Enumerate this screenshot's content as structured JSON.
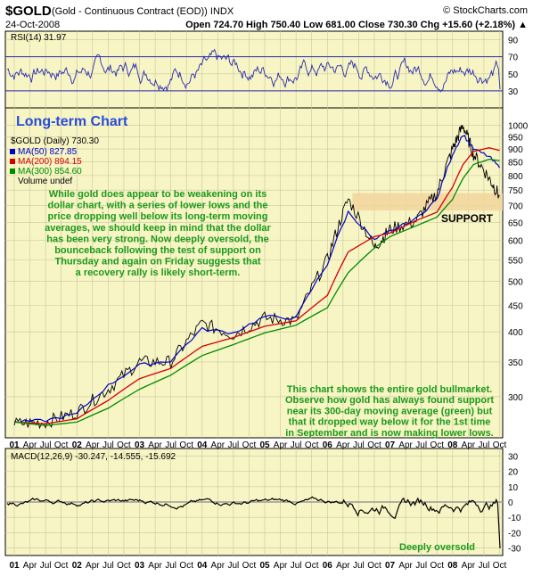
{
  "header": {
    "symbol": "$GOLD",
    "name": "(Gold - Continuous Contract (EOD)) INDX",
    "source": "© StockCharts.com",
    "date": "24-Oct-2008",
    "quote": "Open 724.70  High 750.40  Low 681.00  Close 730.30  Chg +15.60 (+2.18%) ▲"
  },
  "colors": {
    "panel_bg": "#f7f5c4",
    "grid": "#c9c6a0",
    "price": "#000000",
    "ma50": "#0000c8",
    "ma200": "#d40000",
    "ma300": "#008a00",
    "rsi": "#2a2ab0",
    "support_band": "#f2d59c",
    "note": "#1b9a1b",
    "title_blue": "#2a4cd8"
  },
  "annotations": {
    "chart_title": "Long-term Chart",
    "support_label": "SUPPORT",
    "commentary_1": [
      "While gold does appear to be weakening on its",
      "dollar chart, with a series of lower lows and the",
      "price dropping well below its long-term moving",
      "averages, we should keep in mind that the dollar",
      "has been very strong. Now deeply oversold, the",
      "bounceback following the test of support on",
      "Thursday and again on Friday suggests that",
      "a recovery rally is likely short-term."
    ],
    "commentary_2": [
      "This chart shows the entire gold bullmarket.",
      "Observe how gold has always found support",
      "near its 300-day moving average (green) but",
      "that it dropped way below it for the 1st time",
      "in September and is now making lower lows."
    ],
    "macd_note": "Deeply oversold"
  },
  "chart_data": [
    {
      "type": "line",
      "panel": "rsi",
      "legend": "RSI(14) 31.97",
      "ylim": [
        10,
        100
      ],
      "yticks": [
        30,
        50,
        70,
        90
      ],
      "reference_lines": [
        30,
        70
      ],
      "last_value": 31.97
    },
    {
      "type": "line",
      "panel": "price",
      "scale": "log",
      "legend": [
        {
          "label": "$GOLD (Daily) 730.30",
          "color": "#000000"
        },
        {
          "label": "MA(50) 827.85",
          "color": "#0000c8"
        },
        {
          "label": "MA(200) 894.15",
          "color": "#d40000"
        },
        {
          "label": "MA(300) 854.60",
          "color": "#008a00"
        },
        {
          "label": "Volume undef",
          "color": "#000000"
        }
      ],
      "yticks": [
        300,
        350,
        400,
        450,
        500,
        550,
        600,
        650,
        700,
        750,
        800,
        850,
        900,
        950,
        1000
      ],
      "ylim": [
        250,
        1080
      ],
      "support_zone": [
        685,
        740
      ],
      "x": [
        "2001-01",
        "2001-07",
        "2002-01",
        "2002-07",
        "2003-01",
        "2003-07",
        "2004-01",
        "2004-07",
        "2005-01",
        "2005-07",
        "2006-01",
        "2006-05",
        "2006-10",
        "2007-01",
        "2007-06",
        "2007-10",
        "2008-01",
        "2008-03",
        "2008-05",
        "2008-08",
        "2008-10"
      ],
      "series": [
        {
          "name": "$GOLD (Daily)",
          "values": [
            266,
            268,
            280,
            310,
            350,
            350,
            415,
            395,
            425,
            420,
            550,
            720,
            580,
            630,
            655,
            740,
            900,
            1000,
            880,
            790,
            730
          ]
        },
        {
          "name": "MA(50)",
          "values": [
            268,
            270,
            278,
            315,
            345,
            352,
            405,
            398,
            428,
            425,
            540,
            680,
            600,
            625,
            660,
            720,
            880,
            960,
            900,
            870,
            828
          ]
        },
        {
          "name": "MA(200)",
          "values": [
            268,
            266,
            272,
            295,
            325,
            340,
            375,
            390,
            410,
            420,
            470,
            570,
            610,
            620,
            655,
            680,
            760,
            840,
            890,
            905,
            894
          ]
        },
        {
          "name": "MA(300)",
          "values": [
            268,
            264,
            268,
            285,
            310,
            330,
            360,
            378,
            398,
            412,
            445,
            520,
            580,
            610,
            640,
            665,
            720,
            790,
            840,
            860,
            855
          ]
        }
      ]
    },
    {
      "type": "line",
      "panel": "macd",
      "legend": "MACD(12,26,9) -30.247, -14.555, -15.692",
      "ylim": [
        -35,
        35
      ],
      "yticks": [
        -30,
        -20,
        -10,
        0,
        10,
        20,
        30
      ],
      "last_values": {
        "macd": -30.247,
        "signal": -14.555,
        "histogram": -15.692
      }
    }
  ],
  "xaxis": {
    "labels": [
      {
        "t": "01",
        "bold": true
      },
      {
        "t": "Apr"
      },
      {
        "t": "Jul"
      },
      {
        "t": "Oct"
      },
      {
        "t": "02",
        "bold": true
      },
      {
        "t": "Apr"
      },
      {
        "t": "Jul"
      },
      {
        "t": "Oct"
      },
      {
        "t": "03",
        "bold": true
      },
      {
        "t": "Apr"
      },
      {
        "t": "Jul"
      },
      {
        "t": "Oct"
      },
      {
        "t": "04",
        "bold": true
      },
      {
        "t": "Apr"
      },
      {
        "t": "Jul"
      },
      {
        "t": "Oct"
      },
      {
        "t": "05",
        "bold": true
      },
      {
        "t": "Apr"
      },
      {
        "t": "Jul"
      },
      {
        "t": "Oct"
      },
      {
        "t": "06",
        "bold": true
      },
      {
        "t": "Apr"
      },
      {
        "t": "Jul"
      },
      {
        "t": "Oct"
      },
      {
        "t": "07",
        "bold": true
      },
      {
        "t": "Apr"
      },
      {
        "t": "Jul"
      },
      {
        "t": "Oct"
      },
      {
        "t": "08",
        "bold": true
      },
      {
        "t": "Apr"
      },
      {
        "t": "Jul"
      },
      {
        "t": "Oct"
      }
    ]
  }
}
